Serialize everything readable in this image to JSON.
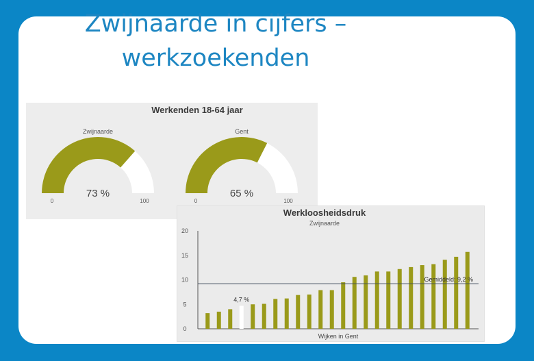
{
  "slide": {
    "title_line1": "Zwijnaarde in cijfers –",
    "title_line2": "werkzoekenden"
  },
  "colors": {
    "background": "#0b86c6",
    "title": "#1d86c2",
    "olive": "#9a9a1a",
    "highlight_bar": "#ffffff",
    "average_line": "#3d4a5a"
  },
  "chart_data": [
    {
      "type": "gauge",
      "title": "Werkenden 18-64 jaar",
      "gauges": [
        {
          "label": "Zwijnaarde",
          "value": 73,
          "value_label": "73 %",
          "min_label": "0",
          "max_label": "100",
          "range": [
            0,
            100
          ]
        },
        {
          "label": "Gent",
          "value": 65,
          "value_label": "65 %",
          "min_label": "0",
          "max_label": "100",
          "range": [
            0,
            100
          ]
        }
      ]
    },
    {
      "type": "bar",
      "title": "Werkloosheidsdruk",
      "subtitle": "Zwijnaarde",
      "xlabel": "Wijken in Gent",
      "ylabel": "",
      "ylim": [
        0,
        20
      ],
      "yticks": [
        "0",
        "5",
        "10",
        "15",
        "20"
      ],
      "values": [
        3.2,
        3.5,
        4.0,
        4.7,
        5.0,
        5.1,
        6.1,
        6.2,
        6.9,
        7.0,
        7.9,
        7.9,
        9.5,
        10.6,
        10.9,
        11.7,
        11.7,
        12.2,
        12.6,
        13.0,
        13.2,
        14.1,
        14.7,
        15.7
      ],
      "highlight_index": 3,
      "highlight_label": "4,7 %",
      "reference_line": {
        "value": 9.2,
        "label": "Gemiddeld: 9,2 %"
      }
    }
  ]
}
